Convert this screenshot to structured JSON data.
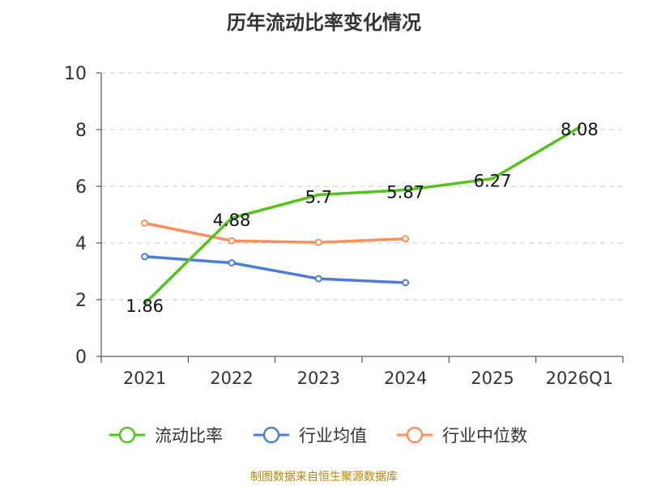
{
  "chart_data": {
    "type": "line",
    "title": "历年流动比率变化情况",
    "categories": [
      "2021",
      "2022",
      "2023",
      "2024",
      "2025",
      "2026Q1"
    ],
    "ylim": [
      0,
      10
    ],
    "yticks": [
      0,
      2,
      4,
      6,
      8,
      10
    ],
    "grid": true,
    "legend_position": "bottom",
    "series": [
      {
        "name": "流动比率",
        "color": "#52c41a",
        "values": [
          1.86,
          4.88,
          5.7,
          5.87,
          6.27,
          8.08
        ],
        "labels": [
          "1.86",
          "4.88",
          "5.7",
          "5.87",
          "6.27",
          "8.08"
        ],
        "show_labels": true,
        "show_markers": false
      },
      {
        "name": "行业均值",
        "color": "#4a7fd9",
        "values": [
          3.52,
          3.3,
          2.74,
          2.6,
          null,
          null
        ],
        "show_labels": false,
        "show_markers": true
      },
      {
        "name": "行业中位数",
        "color": "#f89060",
        "values": [
          4.7,
          4.08,
          4.02,
          4.15,
          null,
          null
        ],
        "show_labels": false,
        "show_markers": true
      }
    ]
  },
  "footer": "制图数据来自恒生聚源数据库"
}
